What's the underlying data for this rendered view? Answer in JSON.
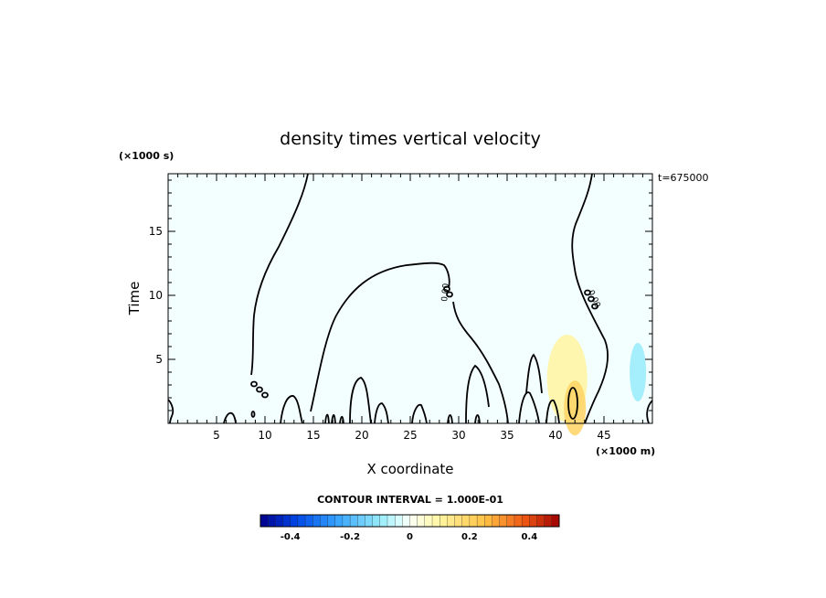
{
  "chart_data": {
    "type": "heatmap",
    "title": "density times vertical velocity",
    "xlabel": "X coordinate",
    "ylabel": "Time",
    "x_unit": "(×1000 m)",
    "y_unit": "(×1000 s)",
    "timestamp": "t=675000",
    "contour_interval": "CONTOUR INTERVAL = 1.000E-01",
    "xlim": [
      0,
      50
    ],
    "ylim": [
      0,
      19.5
    ],
    "x_ticks": [
      5,
      10,
      15,
      20,
      25,
      30,
      35,
      40,
      45
    ],
    "x_tick_labels": [
      "5",
      "10",
      "15",
      "20",
      "25",
      "30",
      "35",
      "40",
      "45"
    ],
    "y_ticks": [
      5,
      10,
      15
    ],
    "y_tick_labels": [
      "5",
      "10",
      "15"
    ],
    "contour_zero_labels": [
      "0.00",
      "0.00"
    ],
    "colorbar": {
      "min": -0.5,
      "max": 0.5,
      "tick_values": [
        -0.4,
        -0.2,
        0,
        0.2,
        0.4
      ],
      "tick_labels": [
        "-0.4",
        "-0.2",
        "0",
        "0.2",
        "0.4"
      ]
    },
    "features": [
      {
        "kind": "positive",
        "x": 41.2,
        "y": 3.5,
        "value": 0.1
      },
      {
        "kind": "positive",
        "x": 42.0,
        "y": 1.2,
        "value": 0.2
      },
      {
        "kind": "negative",
        "x": 48.5,
        "y": 4.0,
        "value": -0.1
      }
    ]
  }
}
